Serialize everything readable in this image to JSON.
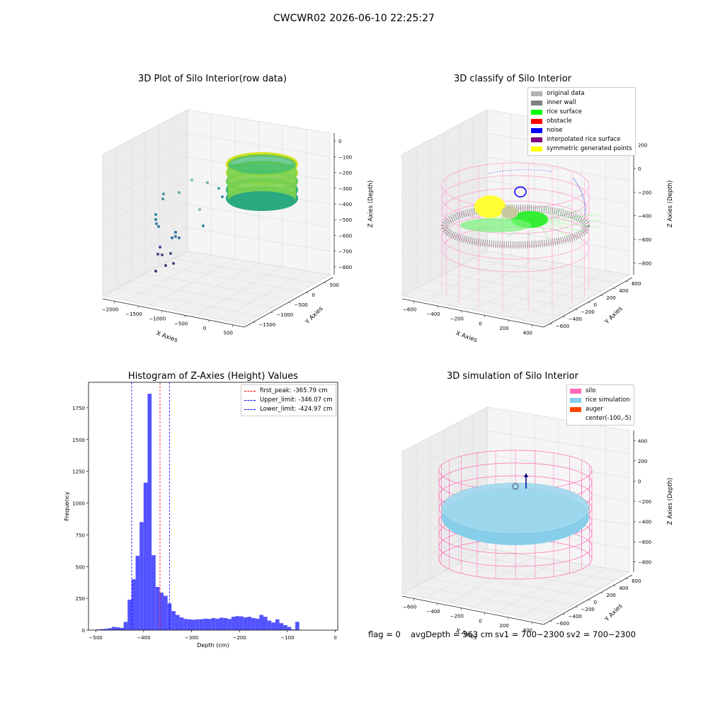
{
  "suptitle": "CWCWR02 2026-06-10 22:25:27",
  "panels": {
    "raw": {
      "title": "3D Plot of Silo Interior(row data)",
      "xlabel": "X Axies",
      "ylabel": "Y Axies",
      "zlabel": "Z Axies (Depth)",
      "xticks": [
        "−2000",
        "−1500",
        "−1000",
        "−500",
        "0",
        "500"
      ],
      "yticks": [
        "500",
        "0",
        "−500",
        "−1000",
        "−1500"
      ],
      "zticks": [
        "0",
        "−100",
        "−200",
        "−300",
        "−400",
        "−500",
        "−600",
        "−700",
        "−800"
      ]
    },
    "classify": {
      "title": "3D classify of Silo Interior",
      "xlabel": "X Axies",
      "ylabel": "Y Axies",
      "zlabel": "Z Axies (Depth)",
      "xticks": [
        "−600",
        "−400",
        "−200",
        "0",
        "200",
        "400"
      ],
      "yticks": [
        "600",
        "400",
        "200",
        "0",
        "−200",
        "−400",
        "−600"
      ],
      "zticks": [
        "200",
        "0",
        "−200",
        "−400",
        "−600",
        "−800"
      ],
      "legend": [
        {
          "label": "original data",
          "color": "#b3b3b3"
        },
        {
          "label": "inner wall",
          "color": "#808080"
        },
        {
          "label": "rice surface",
          "color": "#00ff00"
        },
        {
          "label": "obstacle",
          "color": "#ff0000"
        },
        {
          "label": "noise",
          "color": "#0000ff"
        },
        {
          "label": "interpolated rice surface",
          "color": "#800080"
        },
        {
          "label": "symmetric generated points",
          "color": "#ffff00"
        }
      ]
    },
    "simulation": {
      "title": "3D simulation of Silo Interior",
      "xlabel": "X Axies",
      "ylabel": "Y Axies",
      "zlabel": "Z Axies (Depth)",
      "xticks": [
        "−600",
        "−400",
        "−200",
        "0",
        "200",
        "400"
      ],
      "yticks": [
        "600",
        "400",
        "200",
        "0",
        "−200",
        "−400",
        "−600"
      ],
      "zticks": [
        "400",
        "200",
        "0",
        "−200",
        "−400",
        "−600",
        "−800"
      ],
      "legend": [
        {
          "label": "silo",
          "color": "#ff69b4"
        },
        {
          "label": "rice simulation",
          "color": "#87ceeb"
        },
        {
          "label": "auger",
          "color": "#ff4500"
        },
        {
          "label": "center(-100,-5)",
          "color": ""
        }
      ]
    }
  },
  "status": {
    "flag": "flag = 0",
    "avg": "avgDepth = 363 cm",
    "sv1": "sv1 = 700~2300",
    "sv2": "sv2 = 700~2300"
  },
  "colors": {
    "bars": "#5050ff",
    "first_peak": "#ff0000",
    "limits": "#0000ff",
    "silo": "#ff69b4",
    "rice": "#87ceeb"
  },
  "chart_data": [
    {
      "type": "histogram",
      "title": "Histogram of Z-Axies (Height) Values",
      "xlabel": "Depth (cm)",
      "ylabel": "Frequency",
      "xlim": [
        -515,
        5
      ],
      "ylim": [
        0,
        1950
      ],
      "xticks": [
        -500,
        -400,
        -300,
        -200,
        -100,
        0
      ],
      "xtick_labels": [
        "−500",
        "−400",
        "−300",
        "−200",
        "−100",
        "0"
      ],
      "yticks": [
        0,
        250,
        500,
        750,
        1000,
        1250,
        1500,
        1750
      ],
      "bin_start": -500,
      "bin_width": 8.33,
      "values": [
        5,
        8,
        10,
        15,
        25,
        22,
        18,
        65,
        240,
        400,
        585,
        850,
        1160,
        1860,
        590,
        340,
        295,
        270,
        210,
        150,
        120,
        100,
        88,
        85,
        82,
        85,
        86,
        90,
        88,
        95,
        90,
        98,
        95,
        88,
        105,
        110,
        108,
        100,
        105,
        95,
        90,
        120,
        105,
        75,
        60,
        85,
        55,
        40,
        25,
        5,
        65
      ],
      "vlines": [
        {
          "label": "first_peak: -365.79 cm",
          "x": -365.79,
          "color": "#ff0000"
        },
        {
          "label": "Upper_limit: -346.07 cm",
          "x": -346.07,
          "color": "#0000ff"
        },
        {
          "label": "Lower_limit: -424.97 cm",
          "x": -424.97,
          "color": "#0000ff"
        }
      ],
      "legend_position": "top-right"
    }
  ]
}
